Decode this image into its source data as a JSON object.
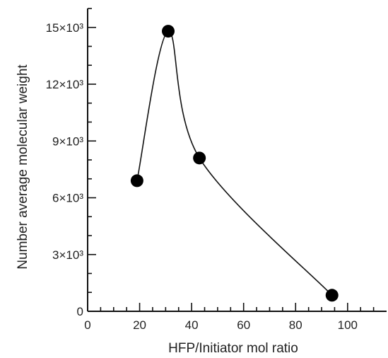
{
  "chart_data": {
    "type": "scatter",
    "title": "",
    "xlabel": "HFP/Initiator mol ratio",
    "ylabel": "Number average molecular weight",
    "xlim": [
      0,
      115
    ],
    "ylim": [
      0,
      16000
    ],
    "x_ticks": [
      0,
      20,
      40,
      60,
      80,
      100
    ],
    "y_ticks": [
      0,
      3000,
      6000,
      9000,
      12000,
      15000
    ],
    "x_tick_labels": [
      "0",
      "20",
      "40",
      "60",
      "80",
      "100"
    ],
    "y_tick_labels": [
      "0",
      "3×10³",
      "6×10³",
      "9×10³",
      "12×10³",
      "15×10³"
    ],
    "grid": false,
    "smooth_curve": true,
    "series": [
      {
        "x": [
          19,
          31,
          43,
          94
        ],
        "y": [
          6900,
          14800,
          8100,
          850
        ]
      }
    ]
  }
}
